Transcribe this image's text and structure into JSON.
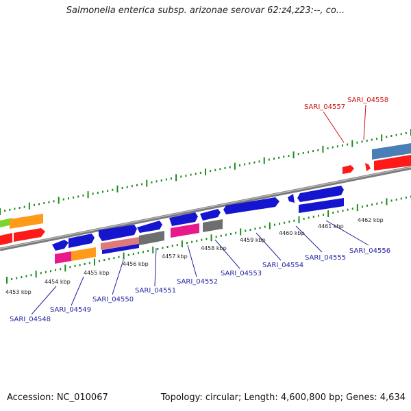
{
  "title": "Salmonella enterica subsp. arizonae serovar 62:z4,z23:--, co...",
  "footer": {
    "accession": "Accession: NC_010067",
    "topology": "Topology: circular; Length: 4,600,800 bp; Genes: 4,634"
  },
  "colors": {
    "forward_gene": "#1515d0",
    "reverse_gene": "#ff1a1a",
    "pink_gene": "#e8198c",
    "orange_gene": "#ff9a1a",
    "green_gene": "#7ad62a",
    "grey_gene": "#6e6e6e",
    "steelblue_gene": "#4a7fb5",
    "salmon_gene": "#e07a7a",
    "scale_ticks": "#1d8a1d",
    "backbone": "#8a8a8a",
    "label_blue": "#1f1fa0",
    "label_red": "#cc1010"
  },
  "scale_labels": [
    "4453 kbp",
    "4454 kbp",
    "4455 kbp",
    "4456 kbp",
    "4457 kbp",
    "4458 kbp",
    "4459 kbp",
    "4460 kbp",
    "4461 kbp",
    "4462 kbp"
  ],
  "gene_labels": [
    "SARI_04548",
    "SARI_04549",
    "SARI_04550",
    "SARI_04551",
    "SARI_04552",
    "SARI_04553",
    "SARI_04554",
    "SARI_04555",
    "SARI_04556",
    "SARI_04557",
    "SARI_04558"
  ]
}
